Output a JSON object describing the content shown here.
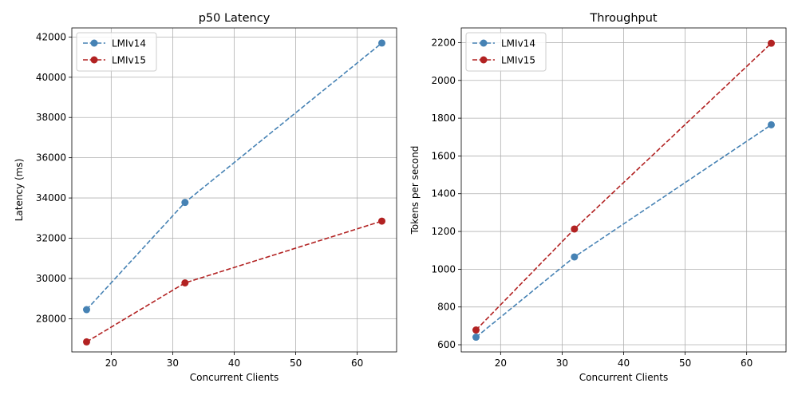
{
  "chart_data": [
    {
      "type": "line",
      "title": "p50 Latency",
      "xlabel": "Concurrent Clients",
      "ylabel": "Latency (ms)",
      "xlim": [
        13.6,
        66.4
      ],
      "ylim": [
        26350,
        42450
      ],
      "xticks": [
        20,
        30,
        40,
        50,
        60
      ],
      "yticks": [
        28000,
        30000,
        32000,
        34000,
        36000,
        38000,
        40000,
        42000
      ],
      "grid": true,
      "legend_position": "top-left",
      "x": [
        16,
        32,
        64
      ],
      "series": [
        {
          "name": "LMIv14",
          "color": "#4682b4",
          "values": [
            28450,
            33780,
            41700
          ]
        },
        {
          "name": "LMIv15",
          "color": "#b22222",
          "values": [
            26850,
            29780,
            32850
          ]
        }
      ]
    },
    {
      "type": "line",
      "title": "Throughput",
      "xlabel": "Concurrent Clients",
      "ylabel": "Tokens per second",
      "xlim": [
        13.6,
        66.4
      ],
      "ylim": [
        562,
        2278
      ],
      "xticks": [
        20,
        30,
        40,
        50,
        60
      ],
      "yticks": [
        600,
        800,
        1000,
        1200,
        1400,
        1600,
        1800,
        2000,
        2200
      ],
      "grid": true,
      "legend_position": "top-left",
      "x": [
        16,
        32,
        64
      ],
      "series": [
        {
          "name": "LMIv14",
          "color": "#4682b4",
          "values": [
            640,
            1065,
            1765
          ]
        },
        {
          "name": "LMIv15",
          "color": "#b22222",
          "values": [
            678,
            1213,
            2197
          ]
        }
      ]
    }
  ]
}
